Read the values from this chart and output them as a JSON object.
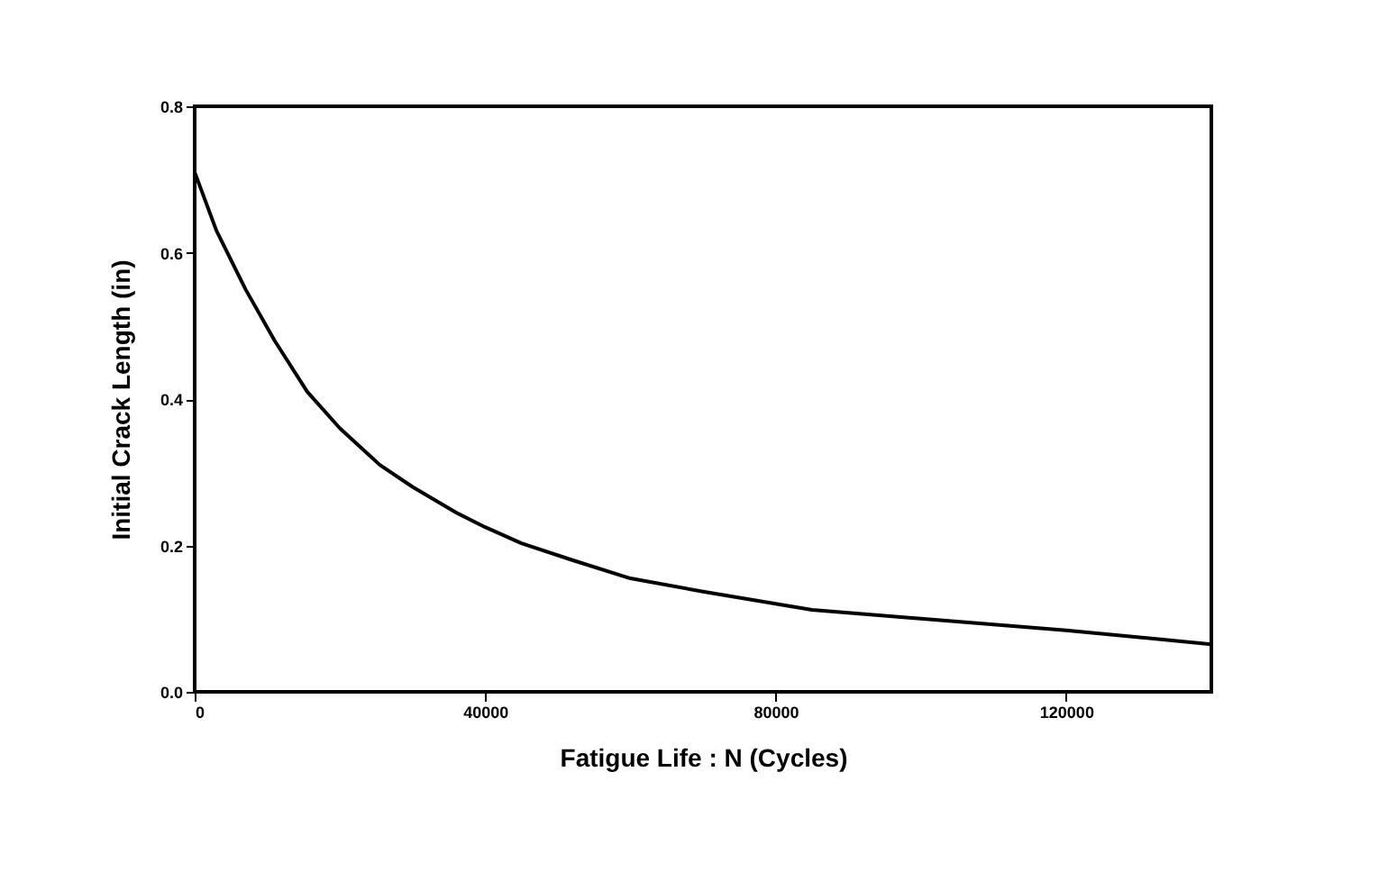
{
  "chart_data": {
    "type": "line",
    "xlabel": "Fatigue Life : N (Cycles)",
    "ylabel": "Initial Crack Length (in)",
    "x": [
      0,
      3000,
      7000,
      11000,
      15500,
      20000,
      25500,
      30000,
      36000,
      40000,
      45000,
      52000,
      60000,
      70000,
      85000,
      100000,
      120000,
      140000
    ],
    "series": [
      {
        "color": "#000000",
        "values": [
          0.71,
          0.63,
          0.55,
          0.48,
          0.41,
          0.36,
          0.31,
          0.28,
          0.245,
          0.225,
          0.203,
          0.18,
          0.155,
          0.137,
          0.112,
          0.1,
          0.084,
          0.065
        ]
      }
    ],
    "xlim": [
      0,
      140000
    ],
    "xticks": [
      0,
      40000,
      80000,
      120000
    ],
    "ylim": [
      0,
      0.8
    ],
    "yticks": [
      {
        "value": 0,
        "label": "0.0"
      },
      {
        "value": 0.2,
        "label": "0.2"
      },
      {
        "value": 0.4,
        "label": "0.4"
      },
      {
        "value": 0.6,
        "label": "0.6"
      },
      {
        "value": 0.8,
        "label": "0.8"
      }
    ],
    "grid": false,
    "marker": "none",
    "line_style": "solid"
  }
}
